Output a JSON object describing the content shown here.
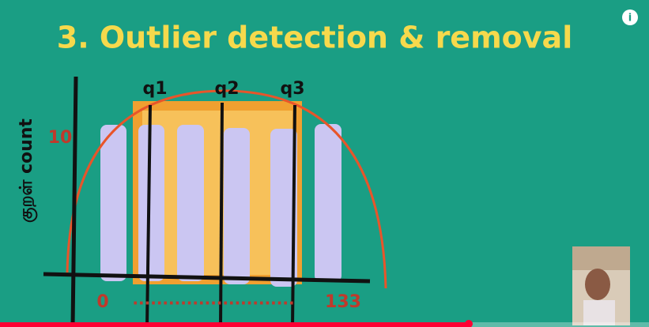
{
  "title": "3. Outlier detection & removal",
  "quartile_labels": [
    "q1",
    "q2",
    "q3"
  ],
  "y_axis_label": "குறள் count",
  "y_value_label": "10",
  "x_range_labels": [
    "0",
    "133"
  ],
  "x_range_dots": "...........................",
  "info_icon": "i"
}
